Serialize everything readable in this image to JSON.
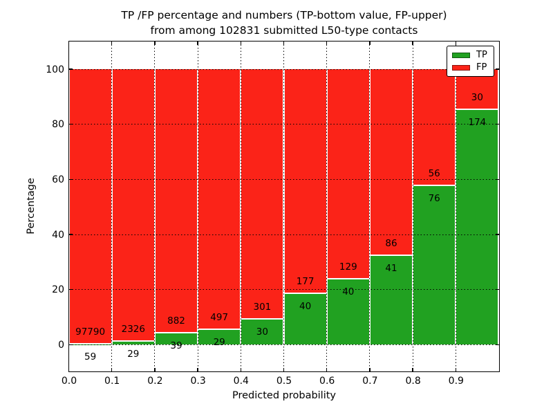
{
  "window": {
    "background": "#ffffff"
  },
  "chart_data": {
    "type": "bar",
    "stacked": true,
    "normalized_to_percent": true,
    "title_line1": "TP /FP percentage and numbers (TP-bottom value, FP-upper)",
    "title_line2": "from among 102831 submitted L50-type contacts",
    "total_contacts": 102831,
    "xlabel": "Predicted probability",
    "ylabel": "Percentage",
    "xlim": [
      0.0,
      1.0
    ],
    "ylim": [
      -10,
      110
    ],
    "grid": "dotted",
    "legend_position": "upper right",
    "bin_width": 0.1,
    "bin_starts": [
      0.0,
      0.1,
      0.2,
      0.3,
      0.4,
      0.5,
      0.6,
      0.7,
      0.8,
      0.9
    ],
    "x_tick_labels": [
      "0.0",
      "0.1",
      "0.2",
      "0.3",
      "0.4",
      "0.5",
      "0.6",
      "0.7",
      "0.8",
      "0.9"
    ],
    "y_tick_values": [
      0,
      20,
      40,
      60,
      80,
      100
    ],
    "series": [
      {
        "name": "TP",
        "color": "#21a121",
        "position": "bottom",
        "counts": [
          59,
          29,
          39,
          29,
          30,
          40,
          40,
          41,
          76,
          174
        ]
      },
      {
        "name": "FP",
        "color": "#fb2318",
        "position": "top",
        "counts": [
          97790,
          2326,
          882,
          497,
          301,
          177,
          129,
          86,
          56,
          30
        ]
      }
    ],
    "tp_percent_heights": [
      0.06,
      1.23,
      4.23,
      5.51,
      9.06,
      18.43,
      23.67,
      32.28,
      57.58,
      85.29
    ]
  },
  "legend": {
    "items": [
      {
        "label": "TP",
        "color": "#21a121"
      },
      {
        "label": "FP",
        "color": "#fb2318"
      }
    ]
  }
}
